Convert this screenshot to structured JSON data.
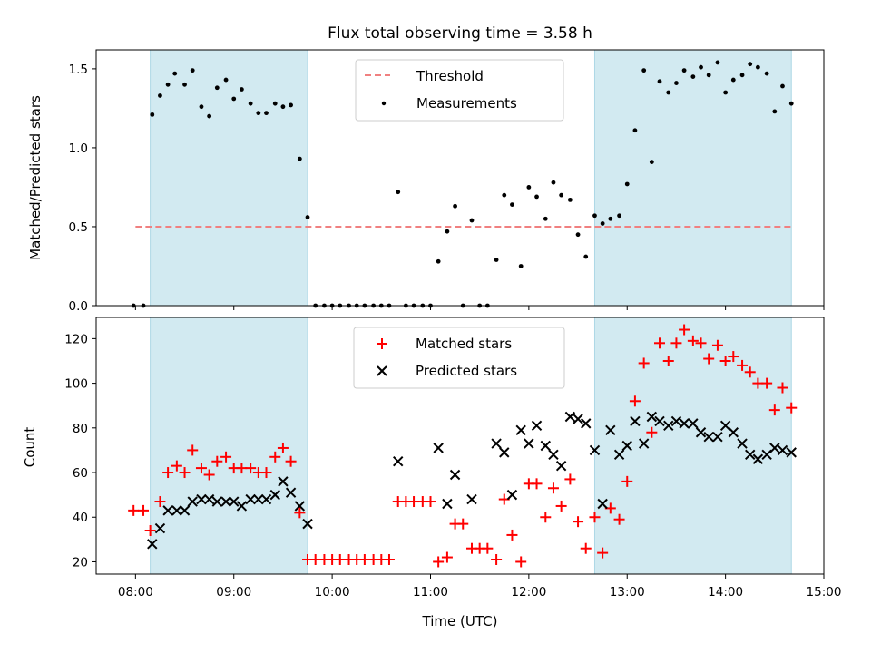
{
  "chart_data": {
    "type": "scatter",
    "title": "Flux total observing time = 3.58 h",
    "xlabel": "Time (UTC)",
    "xlim_hours": [
      7.6,
      15.0
    ],
    "xticks": [
      {
        "value": 8,
        "label": "08:00"
      },
      {
        "value": 9,
        "label": "09:00"
      },
      {
        "value": 10,
        "label": "10:00"
      },
      {
        "value": 11,
        "label": "11:00"
      },
      {
        "value": 12,
        "label": "12:00"
      },
      {
        "value": 13,
        "label": "13:00"
      },
      {
        "value": 14,
        "label": "14:00"
      },
      {
        "value": 15,
        "label": "15:00"
      }
    ],
    "observing_windows_hours": [
      [
        8.15,
        9.75
      ],
      [
        12.67,
        14.67
      ]
    ],
    "colors": {
      "window": "#add8e6",
      "threshold": "#f08080",
      "measurement": "#000000",
      "matched": "#ff0000",
      "predicted": "#000000"
    },
    "top_panel": {
      "ylabel": "Matched/Predicted stars",
      "ylim": [
        0,
        1.62
      ],
      "yticks": [
        0.0,
        0.5,
        1.0,
        1.5
      ],
      "ytick_labels": [
        "0.0",
        "0.5",
        "1.0",
        "1.5"
      ],
      "threshold": {
        "value": 0.5,
        "x_range": [
          8.0,
          14.67
        ]
      },
      "legend": {
        "threshold_label": "Threshold",
        "measurements_label": "Measurements"
      },
      "measurements": [
        [
          7.98,
          0.0
        ],
        [
          8.08,
          0.0
        ],
        [
          8.17,
          1.21
        ],
        [
          8.25,
          1.33
        ],
        [
          8.33,
          1.4
        ],
        [
          8.4,
          1.47
        ],
        [
          8.5,
          1.4
        ],
        [
          8.58,
          1.49
        ],
        [
          8.67,
          1.26
        ],
        [
          8.75,
          1.2
        ],
        [
          8.83,
          1.38
        ],
        [
          8.92,
          1.43
        ],
        [
          9.0,
          1.31
        ],
        [
          9.08,
          1.37
        ],
        [
          9.17,
          1.28
        ],
        [
          9.25,
          1.22
        ],
        [
          9.33,
          1.22
        ],
        [
          9.42,
          1.28
        ],
        [
          9.5,
          1.26
        ],
        [
          9.58,
          1.27
        ],
        [
          9.67,
          0.93
        ],
        [
          9.75,
          0.56
        ],
        [
          9.83,
          0.0
        ],
        [
          9.92,
          0.0
        ],
        [
          10.0,
          0.0
        ],
        [
          10.08,
          0.0
        ],
        [
          10.17,
          0.0
        ],
        [
          10.25,
          0.0
        ],
        [
          10.33,
          0.0
        ],
        [
          10.42,
          0.0
        ],
        [
          10.5,
          0.0
        ],
        [
          10.58,
          0.0
        ],
        [
          10.67,
          0.72
        ],
        [
          10.75,
          0.0
        ],
        [
          10.83,
          0.0
        ],
        [
          10.92,
          0.0
        ],
        [
          11.0,
          0.0
        ],
        [
          11.08,
          0.28
        ],
        [
          11.17,
          0.47
        ],
        [
          11.25,
          0.63
        ],
        [
          11.33,
          0.0
        ],
        [
          11.42,
          0.54
        ],
        [
          11.5,
          0.0
        ],
        [
          11.58,
          0.0
        ],
        [
          11.67,
          0.29
        ],
        [
          11.75,
          0.7
        ],
        [
          11.83,
          0.64
        ],
        [
          11.92,
          0.25
        ],
        [
          12.0,
          0.75
        ],
        [
          12.08,
          0.69
        ],
        [
          12.17,
          0.55
        ],
        [
          12.25,
          0.78
        ],
        [
          12.33,
          0.7
        ],
        [
          12.42,
          0.67
        ],
        [
          12.5,
          0.45
        ],
        [
          12.58,
          0.31
        ],
        [
          12.67,
          0.57
        ],
        [
          12.75,
          0.52
        ],
        [
          12.83,
          0.55
        ],
        [
          12.92,
          0.57
        ],
        [
          13.0,
          0.77
        ],
        [
          13.08,
          1.11
        ],
        [
          13.17,
          1.49
        ],
        [
          13.25,
          0.91
        ],
        [
          13.33,
          1.42
        ],
        [
          13.42,
          1.35
        ],
        [
          13.5,
          1.41
        ],
        [
          13.58,
          1.49
        ],
        [
          13.67,
          1.45
        ],
        [
          13.75,
          1.51
        ],
        [
          13.83,
          1.46
        ],
        [
          13.92,
          1.54
        ],
        [
          14.0,
          1.35
        ],
        [
          14.08,
          1.43
        ],
        [
          14.17,
          1.46
        ],
        [
          14.25,
          1.53
        ],
        [
          14.33,
          1.51
        ],
        [
          14.42,
          1.47
        ],
        [
          14.5,
          1.23
        ],
        [
          14.58,
          1.39
        ],
        [
          14.67,
          1.28
        ]
      ]
    },
    "bottom_panel": {
      "ylabel": "Count",
      "ylim": [
        14.5,
        129.5
      ],
      "yticks": [
        20,
        40,
        60,
        80,
        100,
        120
      ],
      "ytick_labels": [
        "20",
        "40",
        "60",
        "80",
        "100",
        "120"
      ],
      "legend": {
        "matched_label": "Matched stars",
        "predicted_label": "Predicted stars"
      },
      "matched": [
        [
          7.98,
          43
        ],
        [
          8.08,
          43
        ],
        [
          8.15,
          34
        ],
        [
          8.25,
          47
        ],
        [
          8.33,
          60
        ],
        [
          8.42,
          63
        ],
        [
          8.5,
          60
        ],
        [
          8.58,
          70
        ],
        [
          8.67,
          62
        ],
        [
          8.75,
          59
        ],
        [
          8.83,
          65
        ],
        [
          8.92,
          67
        ],
        [
          9.0,
          62
        ],
        [
          9.08,
          62
        ],
        [
          9.17,
          62
        ],
        [
          9.25,
          60
        ],
        [
          9.33,
          60
        ],
        [
          9.42,
          67
        ],
        [
          9.5,
          71
        ],
        [
          9.58,
          65
        ],
        [
          9.67,
          42
        ],
        [
          9.75,
          21
        ],
        [
          9.83,
          21
        ],
        [
          9.92,
          21
        ],
        [
          10.0,
          21
        ],
        [
          10.08,
          21
        ],
        [
          10.17,
          21
        ],
        [
          10.25,
          21
        ],
        [
          10.33,
          21
        ],
        [
          10.42,
          21
        ],
        [
          10.5,
          21
        ],
        [
          10.58,
          21
        ],
        [
          10.67,
          47
        ],
        [
          10.75,
          47
        ],
        [
          10.83,
          47
        ],
        [
          10.92,
          47
        ],
        [
          11.0,
          47
        ],
        [
          11.08,
          20
        ],
        [
          11.17,
          22
        ],
        [
          11.25,
          37
        ],
        [
          11.33,
          37
        ],
        [
          11.42,
          26
        ],
        [
          11.5,
          26
        ],
        [
          11.58,
          26
        ],
        [
          11.67,
          21
        ],
        [
          11.75,
          48
        ],
        [
          11.83,
          32
        ],
        [
          11.92,
          20
        ],
        [
          12.0,
          55
        ],
        [
          12.08,
          55
        ],
        [
          12.17,
          40
        ],
        [
          12.25,
          53
        ],
        [
          12.33,
          45
        ],
        [
          12.42,
          57
        ],
        [
          12.5,
          38
        ],
        [
          12.58,
          26
        ],
        [
          12.67,
          40
        ],
        [
          12.75,
          24
        ],
        [
          12.83,
          44
        ],
        [
          12.92,
          39
        ],
        [
          13.0,
          56
        ],
        [
          13.08,
          92
        ],
        [
          13.17,
          109
        ],
        [
          13.25,
          78
        ],
        [
          13.33,
          118
        ],
        [
          13.42,
          110
        ],
        [
          13.5,
          118
        ],
        [
          13.58,
          124
        ],
        [
          13.67,
          119
        ],
        [
          13.75,
          118
        ],
        [
          13.83,
          111
        ],
        [
          13.92,
          117
        ],
        [
          14.0,
          110
        ],
        [
          14.08,
          112
        ],
        [
          14.17,
          108
        ],
        [
          14.25,
          105
        ],
        [
          14.33,
          100
        ],
        [
          14.42,
          100
        ],
        [
          14.5,
          88
        ],
        [
          14.58,
          98
        ],
        [
          14.67,
          89
        ]
      ],
      "predicted": [
        [
          8.17,
          28
        ],
        [
          8.25,
          35
        ],
        [
          8.33,
          43
        ],
        [
          8.42,
          43
        ],
        [
          8.5,
          43
        ],
        [
          8.58,
          47
        ],
        [
          8.67,
          48
        ],
        [
          8.75,
          48
        ],
        [
          8.83,
          47
        ],
        [
          8.92,
          47
        ],
        [
          9.0,
          47
        ],
        [
          9.08,
          45
        ],
        [
          9.17,
          48
        ],
        [
          9.25,
          48
        ],
        [
          9.33,
          48
        ],
        [
          9.42,
          50
        ],
        [
          9.5,
          56
        ],
        [
          9.58,
          51
        ],
        [
          9.67,
          45
        ],
        [
          9.75,
          37
        ],
        [
          10.67,
          65
        ],
        [
          11.08,
          71
        ],
        [
          11.17,
          46
        ],
        [
          11.25,
          59
        ],
        [
          11.42,
          48
        ],
        [
          11.67,
          73
        ],
        [
          11.75,
          69
        ],
        [
          11.83,
          50
        ],
        [
          11.92,
          79
        ],
        [
          12.0,
          73
        ],
        [
          12.08,
          81
        ],
        [
          12.17,
          72
        ],
        [
          12.25,
          68
        ],
        [
          12.33,
          63
        ],
        [
          12.42,
          85
        ],
        [
          12.5,
          84
        ],
        [
          12.58,
          82
        ],
        [
          12.67,
          70
        ],
        [
          12.75,
          46
        ],
        [
          12.83,
          79
        ],
        [
          12.92,
          68
        ],
        [
          13.0,
          72
        ],
        [
          13.08,
          83
        ],
        [
          13.17,
          73
        ],
        [
          13.25,
          85
        ],
        [
          13.33,
          83
        ],
        [
          13.42,
          81
        ],
        [
          13.5,
          83
        ],
        [
          13.58,
          82
        ],
        [
          13.67,
          82
        ],
        [
          13.75,
          78
        ],
        [
          13.83,
          76
        ],
        [
          13.92,
          76
        ],
        [
          14.0,
          81
        ],
        [
          14.08,
          78
        ],
        [
          14.17,
          73
        ],
        [
          14.25,
          68
        ],
        [
          14.33,
          66
        ],
        [
          14.42,
          68
        ],
        [
          14.5,
          71
        ],
        [
          14.58,
          70
        ],
        [
          14.67,
          69
        ]
      ]
    }
  }
}
